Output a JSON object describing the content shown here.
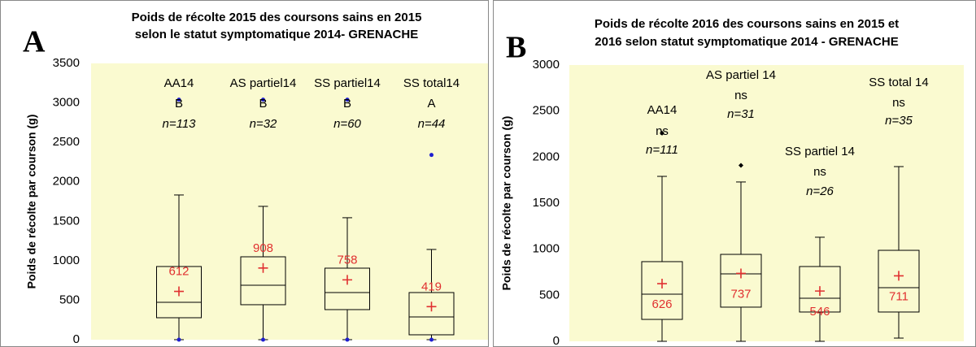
{
  "chart_data": [
    {
      "type": "box",
      "panel": "A",
      "title_lines": [
        "Poids de récolte 2015 des coursons sains en 2015",
        "selon le statut symptomatique  2014- GRENACHE"
      ],
      "ylabel": "Poids de récolte par courson (g)",
      "ylim": [
        0,
        3500
      ],
      "yticks": [
        0,
        500,
        1000,
        1500,
        2000,
        2500,
        3000,
        3500
      ],
      "categories": [
        "AA14",
        "AS partiel14",
        "SS partiel14",
        "SS total14"
      ],
      "significance": [
        "B",
        "B",
        "B",
        "A"
      ],
      "n_labels": [
        "n=113",
        "n=32",
        "n=60",
        "n=44"
      ],
      "outlier_color": "#1f1fd0",
      "mean_color": "#e03030",
      "boxes": [
        {
          "min": 0,
          "q1": 278,
          "median": 474,
          "q3": 927,
          "max": 1833,
          "mean": 612,
          "outliers": [
            0,
            3040
          ]
        },
        {
          "min": 0,
          "q1": 443,
          "median": 690,
          "q3": 1050,
          "max": 1689,
          "mean": 908,
          "outliers": [
            0,
            3040
          ]
        },
        {
          "min": 0,
          "q1": 381,
          "median": 597,
          "q3": 906,
          "max": 1545,
          "mean": 758,
          "outliers": [
            0,
            3040
          ]
        },
        {
          "min": 0,
          "q1": 62,
          "median": 288,
          "q3": 597,
          "max": 1143,
          "mean": 419,
          "outliers": [
            0,
            2340
          ]
        }
      ]
    },
    {
      "type": "box",
      "panel": "B",
      "title_lines": [
        "Poids de récolte 2016 des coursons sains en 2015 et",
        "2016 selon statut symptomatique  2014 - GRENACHE"
      ],
      "ylabel": "Poids de récolte par courson (g)",
      "ylim": [
        0,
        3000
      ],
      "yticks": [
        0,
        500,
        1000,
        1500,
        2000,
        2500,
        3000
      ],
      "categories": [
        "AA14",
        "AS partiel 14",
        "SS partiel 14",
        "SS total 14"
      ],
      "significance": [
        "ns",
        "ns",
        "ns",
        "ns"
      ],
      "n_labels": [
        "n=111",
        "n=31",
        "n=26",
        "n=35"
      ],
      "outlier_color": "#000000",
      "mean_color": "#e03030",
      "boxes": [
        {
          "min": 0,
          "q1": 238,
          "median": 512,
          "q3": 865,
          "max": 1791,
          "mean": 626,
          "outliers": [
            2260
          ]
        },
        {
          "min": 0,
          "q1": 371,
          "median": 732,
          "q3": 944,
          "max": 1730,
          "mean": 737,
          "outliers": [
            1910
          ]
        },
        {
          "min": 0,
          "q1": 318,
          "median": 468,
          "q3": 812,
          "max": 1130,
          "mean": 546,
          "outliers": []
        },
        {
          "min": 35,
          "q1": 318,
          "median": 582,
          "q3": 988,
          "max": 1897,
          "mean": 711,
          "outliers": []
        }
      ]
    }
  ]
}
